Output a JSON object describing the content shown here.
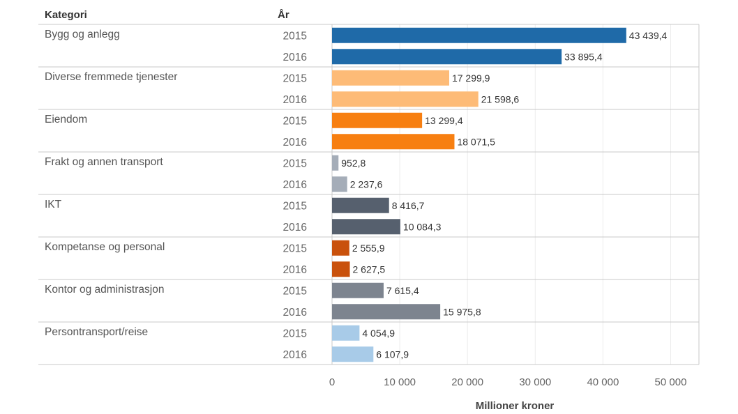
{
  "chart_data": {
    "type": "bar",
    "orientation": "horizontal",
    "headers": {
      "category": "Kategori",
      "year": "År"
    },
    "xlabel": "Millioner kroner",
    "xlim": [
      0,
      54000
    ],
    "ticks": [
      0,
      10000,
      20000,
      30000,
      40000,
      50000
    ],
    "tick_labels": [
      "0",
      "10 000",
      "20 000",
      "30 000",
      "40 000",
      "50 000"
    ],
    "categories": [
      {
        "name": "Bygg og anlegg",
        "color": "#1f6aa8",
        "rows": [
          {
            "year": "2015",
            "value": 43439.4,
            "label": "43 439,4"
          },
          {
            "year": "2016",
            "value": 33895.4,
            "label": "33 895,4"
          }
        ]
      },
      {
        "name": "Diverse fremmede tjenester",
        "color": "#fdbb77",
        "rows": [
          {
            "year": "2015",
            "value": 17299.9,
            "label": "17 299,9"
          },
          {
            "year": "2016",
            "value": 21598.6,
            "label": "21 598,6"
          }
        ]
      },
      {
        "name": "Eiendom",
        "color": "#f77f11",
        "rows": [
          {
            "year": "2015",
            "value": 13299.4,
            "label": "13 299,4"
          },
          {
            "year": "2016",
            "value": 18071.5,
            "label": "18 071,5"
          }
        ]
      },
      {
        "name": "Frakt og annen transport",
        "color": "#a5adb8",
        "rows": [
          {
            "year": "2015",
            "value": 952.8,
            "label": "952,8"
          },
          {
            "year": "2016",
            "value": 2237.6,
            "label": "2 237,6"
          }
        ]
      },
      {
        "name": "IKT",
        "color": "#56606e",
        "rows": [
          {
            "year": "2015",
            "value": 8416.7,
            "label": "8 416,7"
          },
          {
            "year": "2016",
            "value": 10084.3,
            "label": "10 084,3"
          }
        ]
      },
      {
        "name": "Kompetanse og personal",
        "color": "#c9510c",
        "rows": [
          {
            "year": "2015",
            "value": 2555.9,
            "label": "2 555,9"
          },
          {
            "year": "2016",
            "value": 2627.5,
            "label": "2 627,5"
          }
        ]
      },
      {
        "name": "Kontor og administrasjon",
        "color": "#7d848f",
        "rows": [
          {
            "year": "2015",
            "value": 7615.4,
            "label": "7 615,4"
          },
          {
            "year": "2016",
            "value": 15975.8,
            "label": "15 975,8"
          }
        ]
      },
      {
        "name": "Persontransport/reise",
        "color": "#a8cbe8",
        "rows": [
          {
            "year": "2015",
            "value": 4054.9,
            "label": "4 054,9"
          },
          {
            "year": "2016",
            "value": 6107.9,
            "label": "6 107,9"
          }
        ]
      }
    ]
  }
}
